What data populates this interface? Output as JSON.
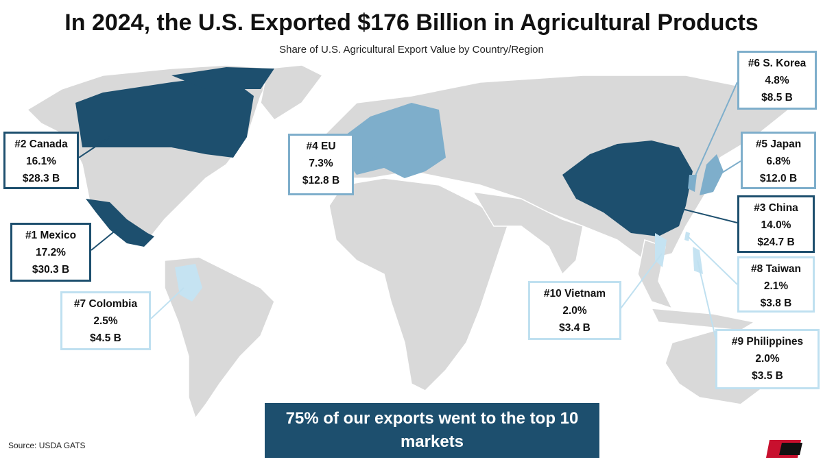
{
  "header": {
    "title": "In 2024, the U.S. Exported $176 Billion in Agricultural Products",
    "subtitle": "Share of U.S. Agricultural Export Value by Country/Region"
  },
  "markets": [
    {
      "label": "#2 Canada",
      "share": "16.1%",
      "value": "$28.3 B"
    },
    {
      "label": "#1 Mexico",
      "share": "17.2%",
      "value": "$30.3 B"
    },
    {
      "label": "#7 Colombia",
      "share": "2.5%",
      "value": "$4.5 B"
    },
    {
      "label": "#4 EU",
      "share": "7.3%",
      "value": "$12.8 B"
    },
    {
      "label": "#6 S. Korea",
      "share": "4.8%",
      "value": "$8.5 B"
    },
    {
      "label": "#5 Japan",
      "share": "6.8%",
      "value": "$12.0 B"
    },
    {
      "label": "#3 China",
      "share": "14.0%",
      "value": "$24.7 B"
    },
    {
      "label": "#8 Taiwan",
      "share": "2.1%",
      "value": "$3.8 B"
    },
    {
      "label": "#10 Vietnam",
      "share": "2.0%",
      "value": "$3.4 B"
    },
    {
      "label": "#9 Philippines",
      "share": "2.0%",
      "value": "$3.5 B"
    }
  ],
  "banner": "75% of our exports went to the top 10 markets",
  "source": "Source: USDA GATS"
}
